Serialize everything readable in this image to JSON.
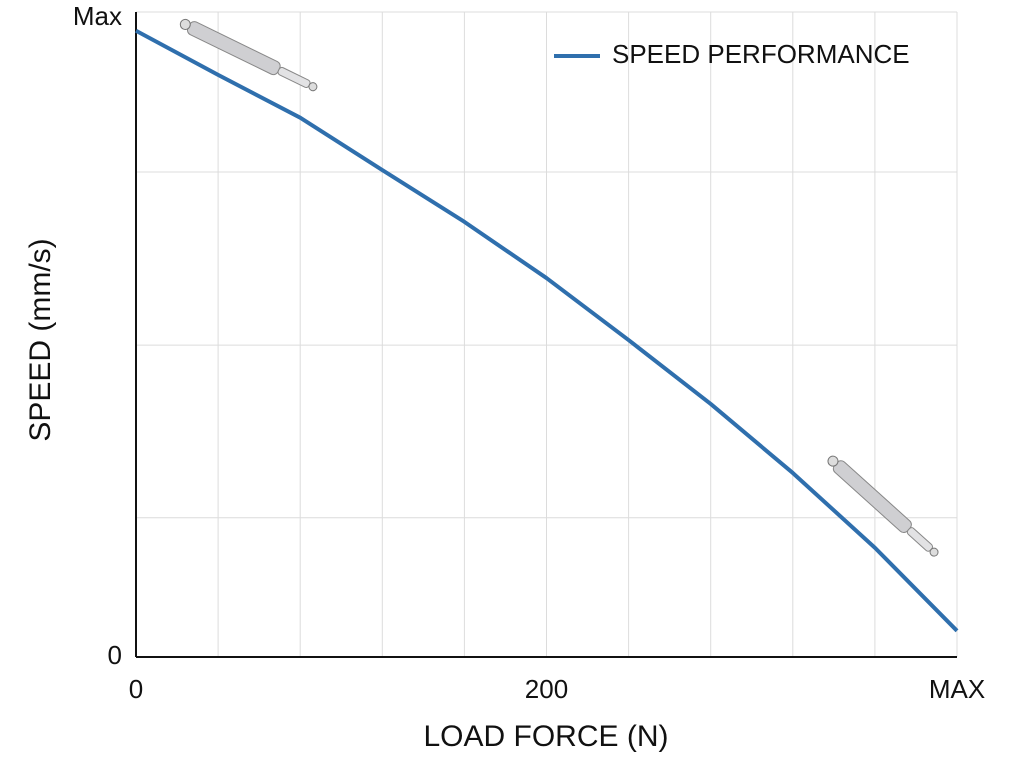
{
  "chart_data": {
    "type": "line",
    "x_label": "LOAD FORCE (N)",
    "y_label": "SPEED (mm/s)",
    "x": [
      0,
      40,
      80,
      120,
      160,
      200,
      240,
      280,
      320,
      360,
      400
    ],
    "series": [
      {
        "name": "SPEED PERFORMANCE",
        "color": "#2f6fad",
        "values": [
          98.0,
          91.1,
          84.4,
          76.2,
          68.1,
          59.3,
          49.6,
          39.6,
          28.8,
          17.1,
          4.1
        ]
      }
    ],
    "xlim": [
      0,
      400
    ],
    "ylim": [
      0,
      100
    ],
    "xticks": [
      0,
      200,
      {
        "value": 400,
        "label": "MAX"
      }
    ],
    "yticks": [
      0,
      {
        "value": 100,
        "label": "Max"
      }
    ],
    "x_grid": [
      40,
      80,
      120,
      160,
      240,
      280,
      320,
      360
    ],
    "y_grid": [
      21.8,
      48.8,
      75.9
    ],
    "grid": true,
    "legend": "top-right"
  }
}
